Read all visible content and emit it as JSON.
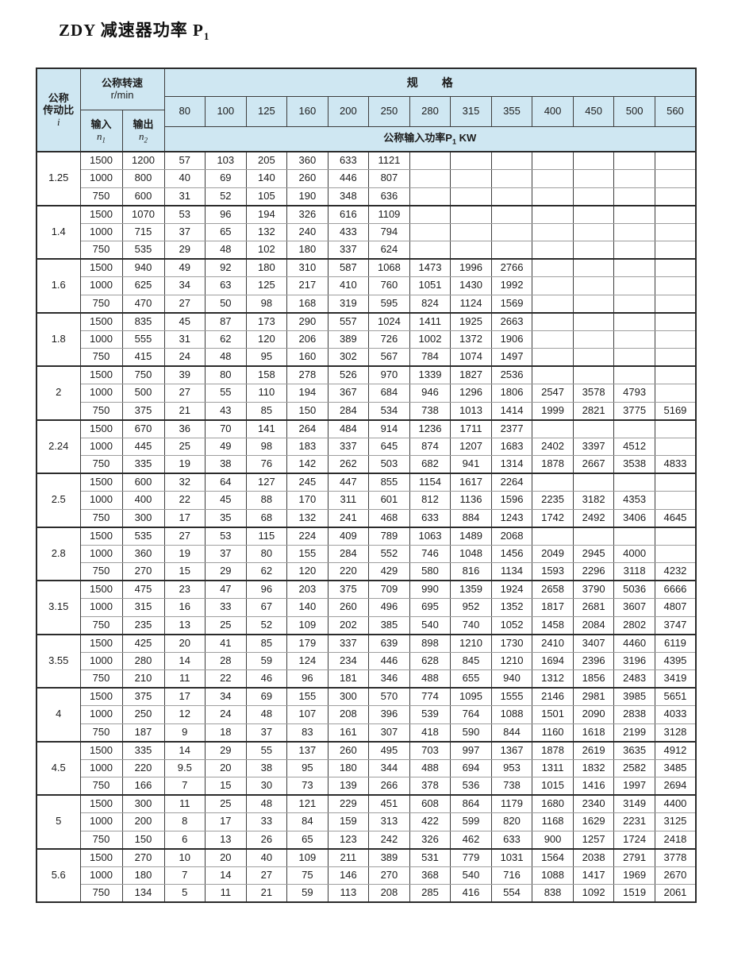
{
  "title": {
    "text": "ZDY 减速器功率 P",
    "sub": "1"
  },
  "table": {
    "corner": {
      "ratio": [
        "公称",
        "传动比",
        "i"
      ],
      "speed": [
        "公称转速",
        "r/min"
      ],
      "input": {
        "label": "输入",
        "sym": "n",
        "sub": "1"
      },
      "output": {
        "label": "输出",
        "sym": "n",
        "sub": "2"
      }
    },
    "spec_header": "规格",
    "specs": [
      "80",
      "100",
      "125",
      "160",
      "200",
      "250",
      "280",
      "315",
      "355",
      "400",
      "450",
      "500",
      "560"
    ],
    "power_header": {
      "text": "公称输入功率P",
      "sub": "1",
      "unit": " KW"
    },
    "groups": [
      {
        "ratio": "1.25",
        "rows": [
          {
            "n1": "1500",
            "n2": "1200",
            "p": [
              "57",
              "103",
              "205",
              "360",
              "633",
              "1121",
              "",
              "",
              "",
              "",
              "",
              "",
              ""
            ]
          },
          {
            "n1": "1000",
            "n2": "800",
            "p": [
              "40",
              "69",
              "140",
              "260",
              "446",
              "807",
              "",
              "",
              "",
              "",
              "",
              "",
              ""
            ]
          },
          {
            "n1": "750",
            "n2": "600",
            "p": [
              "31",
              "52",
              "105",
              "190",
              "348",
              "636",
              "",
              "",
              "",
              "",
              "",
              "",
              ""
            ]
          }
        ]
      },
      {
        "ratio": "1.4",
        "rows": [
          {
            "n1": "1500",
            "n2": "1070",
            "p": [
              "53",
              "96",
              "194",
              "326",
              "616",
              "1109",
              "",
              "",
              "",
              "",
              "",
              "",
              ""
            ]
          },
          {
            "n1": "1000",
            "n2": "715",
            "p": [
              "37",
              "65",
              "132",
              "240",
              "433",
              "794",
              "",
              "",
              "",
              "",
              "",
              "",
              ""
            ]
          },
          {
            "n1": "750",
            "n2": "535",
            "p": [
              "29",
              "48",
              "102",
              "180",
              "337",
              "624",
              "",
              "",
              "",
              "",
              "",
              "",
              ""
            ]
          }
        ]
      },
      {
        "ratio": "1.6",
        "rows": [
          {
            "n1": "1500",
            "n2": "940",
            "p": [
              "49",
              "92",
              "180",
              "310",
              "587",
              "1068",
              "1473",
              "1996",
              "2766",
              "",
              "",
              "",
              ""
            ]
          },
          {
            "n1": "1000",
            "n2": "625",
            "p": [
              "34",
              "63",
              "125",
              "217",
              "410",
              "760",
              "1051",
              "1430",
              "1992",
              "",
              "",
              "",
              ""
            ]
          },
          {
            "n1": "750",
            "n2": "470",
            "p": [
              "27",
              "50",
              "98",
              "168",
              "319",
              "595",
              "824",
              "1124",
              "1569",
              "",
              "",
              "",
              ""
            ]
          }
        ]
      },
      {
        "ratio": "1.8",
        "rows": [
          {
            "n1": "1500",
            "n2": "835",
            "p": [
              "45",
              "87",
              "173",
              "290",
              "557",
              "1024",
              "1411",
              "1925",
              "2663",
              "",
              "",
              "",
              ""
            ]
          },
          {
            "n1": "1000",
            "n2": "555",
            "p": [
              "31",
              "62",
              "120",
              "206",
              "389",
              "726",
              "1002",
              "1372",
              "1906",
              "",
              "",
              "",
              ""
            ]
          },
          {
            "n1": "750",
            "n2": "415",
            "p": [
              "24",
              "48",
              "95",
              "160",
              "302",
              "567",
              "784",
              "1074",
              "1497",
              "",
              "",
              "",
              ""
            ]
          }
        ]
      },
      {
        "ratio": "2",
        "rows": [
          {
            "n1": "1500",
            "n2": "750",
            "p": [
              "39",
              "80",
              "158",
              "278",
              "526",
              "970",
              "1339",
              "1827",
              "2536",
              "",
              "",
              "",
              ""
            ]
          },
          {
            "n1": "1000",
            "n2": "500",
            "p": [
              "27",
              "55",
              "110",
              "194",
              "367",
              "684",
              "946",
              "1296",
              "1806",
              "2547",
              "3578",
              "4793",
              ""
            ]
          },
          {
            "n1": "750",
            "n2": "375",
            "p": [
              "21",
              "43",
              "85",
              "150",
              "284",
              "534",
              "738",
              "1013",
              "1414",
              "1999",
              "2821",
              "3775",
              "5169"
            ]
          }
        ]
      },
      {
        "ratio": "2.24",
        "rows": [
          {
            "n1": "1500",
            "n2": "670",
            "p": [
              "36",
              "70",
              "141",
              "264",
              "484",
              "914",
              "1236",
              "1711",
              "2377",
              "",
              "",
              "",
              ""
            ]
          },
          {
            "n1": "1000",
            "n2": "445",
            "p": [
              "25",
              "49",
              "98",
              "183",
              "337",
              "645",
              "874",
              "1207",
              "1683",
              "2402",
              "3397",
              "4512",
              ""
            ]
          },
          {
            "n1": "750",
            "n2": "335",
            "p": [
              "19",
              "38",
              "76",
              "142",
              "262",
              "503",
              "682",
              "941",
              "1314",
              "1878",
              "2667",
              "3538",
              "4833"
            ]
          }
        ]
      },
      {
        "ratio": "2.5",
        "rows": [
          {
            "n1": "1500",
            "n2": "600",
            "p": [
              "32",
              "64",
              "127",
              "245",
              "447",
              "855",
              "1154",
              "1617",
              "2264",
              "",
              "",
              "",
              ""
            ]
          },
          {
            "n1": "1000",
            "n2": "400",
            "p": [
              "22",
              "45",
              "88",
              "170",
              "311",
              "601",
              "812",
              "1136",
              "1596",
              "2235",
              "3182",
              "4353",
              ""
            ]
          },
          {
            "n1": "750",
            "n2": "300",
            "p": [
              "17",
              "35",
              "68",
              "132",
              "241",
              "468",
              "633",
              "884",
              "1243",
              "1742",
              "2492",
              "3406",
              "4645"
            ]
          }
        ]
      },
      {
        "ratio": "2.8",
        "rows": [
          {
            "n1": "1500",
            "n2": "535",
            "p": [
              "27",
              "53",
              "115",
              "224",
              "409",
              "789",
              "1063",
              "1489",
              "2068",
              "",
              "",
              "",
              ""
            ]
          },
          {
            "n1": "1000",
            "n2": "360",
            "p": [
              "19",
              "37",
              "80",
              "155",
              "284",
              "552",
              "746",
              "1048",
              "1456",
              "2049",
              "2945",
              "4000",
              ""
            ]
          },
          {
            "n1": "750",
            "n2": "270",
            "p": [
              "15",
              "29",
              "62",
              "120",
              "220",
              "429",
              "580",
              "816",
              "1134",
              "1593",
              "2296",
              "3118",
              "4232"
            ]
          }
        ]
      },
      {
        "ratio": "3.15",
        "rows": [
          {
            "n1": "1500",
            "n2": "475",
            "p": [
              "23",
              "47",
              "96",
              "203",
              "375",
              "709",
              "990",
              "1359",
              "1924",
              "2658",
              "3790",
              "5036",
              "6666"
            ]
          },
          {
            "n1": "1000",
            "n2": "315",
            "p": [
              "16",
              "33",
              "67",
              "140",
              "260",
              "496",
              "695",
              "952",
              "1352",
              "1817",
              "2681",
              "3607",
              "4807"
            ]
          },
          {
            "n1": "750",
            "n2": "235",
            "p": [
              "13",
              "25",
              "52",
              "109",
              "202",
              "385",
              "540",
              "740",
              "1052",
              "1458",
              "2084",
              "2802",
              "3747"
            ]
          }
        ]
      },
      {
        "ratio": "3.55",
        "rows": [
          {
            "n1": "1500",
            "n2": "425",
            "p": [
              "20",
              "41",
              "85",
              "179",
              "337",
              "639",
              "898",
              "1210",
              "1730",
              "2410",
              "3407",
              "4460",
              "6119"
            ]
          },
          {
            "n1": "1000",
            "n2": "280",
            "p": [
              "14",
              "28",
              "59",
              "124",
              "234",
              "446",
              "628",
              "845",
              "1210",
              "1694",
              "2396",
              "3196",
              "4395"
            ]
          },
          {
            "n1": "750",
            "n2": "210",
            "p": [
              "11",
              "22",
              "46",
              "96",
              "181",
              "346",
              "488",
              "655",
              "940",
              "1312",
              "1856",
              "2483",
              "3419"
            ]
          }
        ]
      },
      {
        "ratio": "4",
        "rows": [
          {
            "n1": "1500",
            "n2": "375",
            "p": [
              "17",
              "34",
              "69",
              "155",
              "300",
              "570",
              "774",
              "1095",
              "1555",
              "2146",
              "2981",
              "3985",
              "5651"
            ]
          },
          {
            "n1": "1000",
            "n2": "250",
            "p": [
              "12",
              "24",
              "48",
              "107",
              "208",
              "396",
              "539",
              "764",
              "1088",
              "1501",
              "2090",
              "2838",
              "4033"
            ]
          },
          {
            "n1": "750",
            "n2": "187",
            "p": [
              "9",
              "18",
              "37",
              "83",
              "161",
              "307",
              "418",
              "590",
              "844",
              "1160",
              "1618",
              "2199",
              "3128"
            ]
          }
        ]
      },
      {
        "ratio": "4.5",
        "rows": [
          {
            "n1": "1500",
            "n2": "335",
            "p": [
              "14",
              "29",
              "55",
              "137",
              "260",
              "495",
              "703",
              "997",
              "1367",
              "1878",
              "2619",
              "3635",
              "4912"
            ]
          },
          {
            "n1": "1000",
            "n2": "220",
            "p": [
              "9.5",
              "20",
              "38",
              "95",
              "180",
              "344",
              "488",
              "694",
              "953",
              "1311",
              "1832",
              "2582",
              "3485"
            ]
          },
          {
            "n1": "750",
            "n2": "166",
            "p": [
              "7",
              "15",
              "30",
              "73",
              "139",
              "266",
              "378",
              "536",
              "738",
              "1015",
              "1416",
              "1997",
              "2694"
            ]
          }
        ]
      },
      {
        "ratio": "5",
        "rows": [
          {
            "n1": "1500",
            "n2": "300",
            "p": [
              "11",
              "25",
              "48",
              "121",
              "229",
              "451",
              "608",
              "864",
              "1179",
              "1680",
              "2340",
              "3149",
              "4400"
            ]
          },
          {
            "n1": "1000",
            "n2": "200",
            "p": [
              "8",
              "17",
              "33",
              "84",
              "159",
              "313",
              "422",
              "599",
              "820",
              "1168",
              "1629",
              "2231",
              "3125"
            ]
          },
          {
            "n1": "750",
            "n2": "150",
            "p": [
              "6",
              "13",
              "26",
              "65",
              "123",
              "242",
              "326",
              "462",
              "633",
              "900",
              "1257",
              "1724",
              "2418"
            ]
          }
        ]
      },
      {
        "ratio": "5.6",
        "rows": [
          {
            "n1": "1500",
            "n2": "270",
            "p": [
              "10",
              "20",
              "40",
              "109",
              "211",
              "389",
              "531",
              "779",
              "1031",
              "1564",
              "2038",
              "2791",
              "3778"
            ]
          },
          {
            "n1": "1000",
            "n2": "180",
            "p": [
              "7",
              "14",
              "27",
              "75",
              "146",
              "270",
              "368",
              "540",
              "716",
              "1088",
              "1417",
              "1969",
              "2670"
            ]
          },
          {
            "n1": "750",
            "n2": "134",
            "p": [
              "5",
              "11",
              "21",
              "59",
              "113",
              "208",
              "285",
              "416",
              "554",
              "838",
              "1092",
              "1519",
              "2061"
            ]
          }
        ]
      }
    ]
  }
}
